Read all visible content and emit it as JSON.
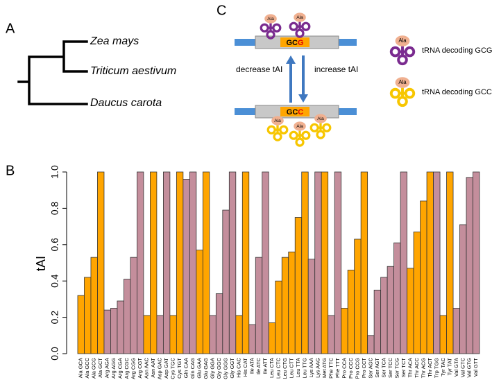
{
  "panel_a": {
    "label": "A",
    "species": [
      "Zea mays",
      "Triticum aestivum",
      "Daucus carota"
    ]
  },
  "panel_c": {
    "label": "C",
    "top_codon": {
      "prefix": "GC",
      "variable": "G"
    },
    "bottom_codon": {
      "prefix": "GC",
      "variable": "C"
    },
    "left_arrow": "decrease tAI",
    "right_arrow": "increase tAI",
    "trna_label": "Ala",
    "legend": [
      "tRNA decoding GCG",
      "tRNA decoding GCC"
    ]
  },
  "chart_data": {
    "type": "bar",
    "label": "B",
    "y_label": "tAI",
    "categories": [
      "Ala GCA",
      "Ala GCC",
      "Ala GCG",
      "Ala GCT",
      "Arg AGA",
      "Arg AGG",
      "Arg CGA",
      "Arg CGC",
      "Arg CGG",
      "Arg CGT",
      "Asn AAC",
      "Asn AAT",
      "Asp GAC",
      "Asp GAT",
      "Cys TGC",
      "Cys TGT",
      "Gln CAA",
      "Gln CAG",
      "Glu GAA",
      "Glu GAG",
      "Gly GGA",
      "Gly GGC",
      "Gly GGG",
      "Gly GGT",
      "His CAC",
      "His CAT",
      "Ile ATA",
      "Ile ATC",
      "Ile ATT",
      "Leu CTA",
      "Leu CTC",
      "Leu CTG",
      "Leu CTT",
      "Leu TTA",
      "Leu TTG",
      "Lys AAA",
      "Lys AAG",
      "Met ATG",
      "Phe TTC",
      "Phe TTT",
      "Pro CCA",
      "Pro CCC",
      "Pro CCG",
      "Pro CCT",
      "Ser AGC",
      "Ser AGT",
      "Ser TCA",
      "Ser TCC",
      "Ser TCG",
      "Ser TCT",
      "Thr ACA",
      "Thr ACC",
      "Thr ACG",
      "Thr ACT",
      "Trp TGG",
      "Tyr TAC",
      "Tyr TAT",
      "Val GTA",
      "Val GTC",
      "Val GTG",
      "Val GTT"
    ],
    "values": [
      0.32,
      0.42,
      0.53,
      1.0,
      0.24,
      0.25,
      0.29,
      0.41,
      0.53,
      1.0,
      0.21,
      1.0,
      0.21,
      1.0,
      0.21,
      1.0,
      0.96,
      1.0,
      0.57,
      1.0,
      0.21,
      0.33,
      0.79,
      1.0,
      0.21,
      1.0,
      0.16,
      0.53,
      1.0,
      0.17,
      0.4,
      0.53,
      0.56,
      0.75,
      1.0,
      0.52,
      1.0,
      1.0,
      0.21,
      1.0,
      0.25,
      0.46,
      0.63,
      1.0,
      0.1,
      0.35,
      0.42,
      0.48,
      0.61,
      1.0,
      0.47,
      0.67,
      0.84,
      1.0,
      1.0,
      0.21,
      1.0,
      0.25,
      0.71,
      0.97,
      1.0
    ],
    "colors": [
      "#ffa500",
      "#ffa500",
      "#ffa500",
      "#ffa500",
      "#c48e9c",
      "#c48e9c",
      "#c48e9c",
      "#c48e9c",
      "#c48e9c",
      "#c48e9c",
      "#ffa500",
      "#ffa500",
      "#c48e9c",
      "#c48e9c",
      "#ffa500",
      "#ffa500",
      "#c48e9c",
      "#c48e9c",
      "#ffa500",
      "#ffa500",
      "#c48e9c",
      "#c48e9c",
      "#c48e9c",
      "#c48e9c",
      "#ffa500",
      "#ffa500",
      "#c48e9c",
      "#c48e9c",
      "#c48e9c",
      "#ffa500",
      "#ffa500",
      "#ffa500",
      "#ffa500",
      "#ffa500",
      "#ffa500",
      "#c48e9c",
      "#c48e9c",
      "#ffa500",
      "#c48e9c",
      "#c48e9c",
      "#ffa500",
      "#ffa500",
      "#ffa500",
      "#ffa500",
      "#c48e9c",
      "#c48e9c",
      "#c48e9c",
      "#c48e9c",
      "#c48e9c",
      "#c48e9c",
      "#ffa500",
      "#ffa500",
      "#ffa500",
      "#ffa500",
      "#c48e9c",
      "#ffa500",
      "#ffa500",
      "#c48e9c",
      "#c48e9c",
      "#c48e9c",
      "#c48e9c"
    ],
    "ylim": [
      0,
      1
    ],
    "yticks": [
      {
        "value": 0,
        "label": "0.0"
      },
      {
        "value": 0.2,
        "label": "0.2"
      },
      {
        "value": 0.4,
        "label": "0.4"
      },
      {
        "value": 0.6,
        "label": "0.6"
      },
      {
        "value": 0.8,
        "label": "0.8"
      },
      {
        "value": 1,
        "label": "1.0"
      }
    ]
  }
}
